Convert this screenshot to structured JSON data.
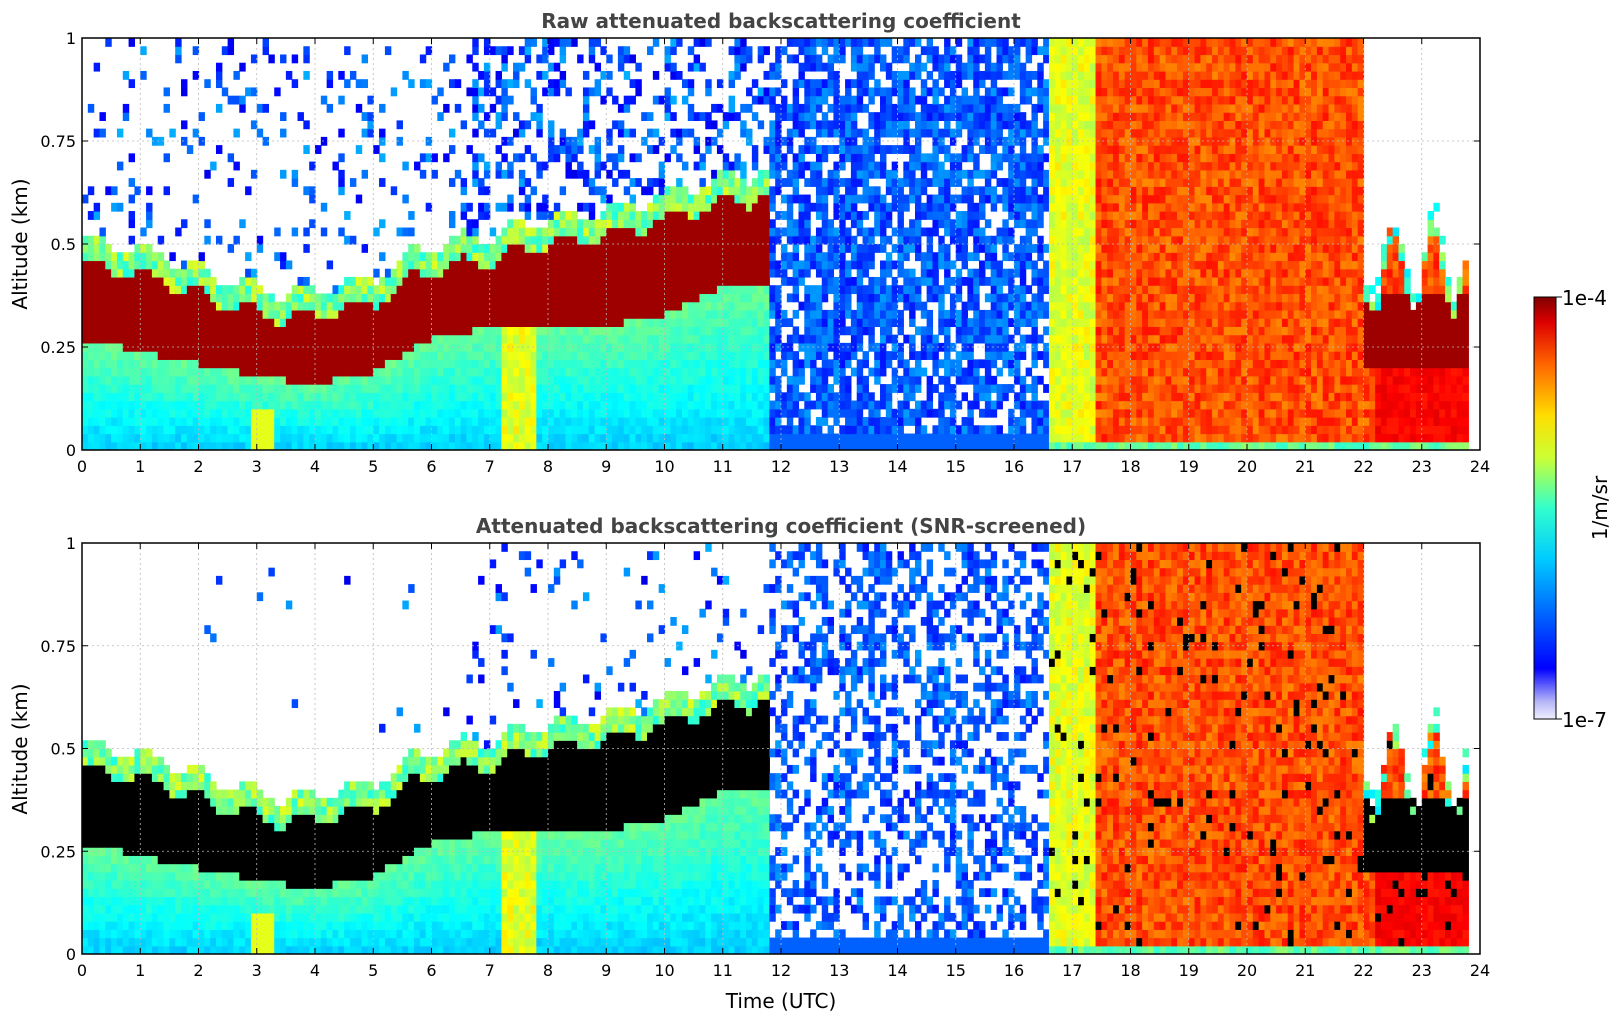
{
  "chart_data": [
    {
      "type": "heatmap",
      "title": "Raw attenuated backscattering coefficient",
      "ylabel": "Altitude (km)",
      "xlabel": "",
      "xlim": [
        0,
        24
      ],
      "ylim": [
        0,
        1
      ],
      "xticks": [
        "0",
        "1",
        "2",
        "3",
        "4",
        "5",
        "6",
        "7",
        "8",
        "9",
        "10",
        "11",
        "12",
        "13",
        "14",
        "15",
        "16",
        "17",
        "18",
        "19",
        "20",
        "21",
        "22",
        "23",
        "24"
      ],
      "yticks": [
        "0",
        "0.25",
        "0.5",
        "0.75",
        "1"
      ],
      "grid": true,
      "layer_top_km": [
        [
          0,
          0.45
        ],
        [
          1,
          0.43
        ],
        [
          2,
          0.38
        ],
        [
          3,
          0.33
        ],
        [
          4,
          0.32
        ],
        [
          5,
          0.36
        ],
        [
          6,
          0.44
        ],
        [
          7,
          0.46
        ],
        [
          8,
          0.5
        ],
        [
          9,
          0.52
        ],
        [
          10,
          0.56
        ],
        [
          11,
          0.6
        ],
        [
          12,
          0.62
        ]
      ],
      "layer_bottom_km": [
        [
          0,
          0.27
        ],
        [
          1,
          0.24
        ],
        [
          2,
          0.21
        ],
        [
          3,
          0.18
        ],
        [
          4,
          0.16
        ],
        [
          5,
          0.19
        ],
        [
          6,
          0.27
        ],
        [
          7,
          0.3
        ],
        [
          8,
          0.3
        ],
        [
          9,
          0.3
        ],
        [
          10,
          0.33
        ],
        [
          11,
          0.4
        ]
      ],
      "screened": false
    },
    {
      "type": "heatmap",
      "title": "Attenuated backscattering coefficient (SNR-screened)",
      "ylabel": "Altitude (km)",
      "xlabel": "Time (UTC)",
      "xlim": [
        0,
        24
      ],
      "ylim": [
        0,
        1
      ],
      "xticks": [
        "0",
        "1",
        "2",
        "3",
        "4",
        "5",
        "6",
        "7",
        "8",
        "9",
        "10",
        "11",
        "12",
        "13",
        "14",
        "15",
        "16",
        "17",
        "18",
        "19",
        "20",
        "21",
        "22",
        "23",
        "24"
      ],
      "yticks": [
        "0",
        "0.25",
        "0.5",
        "0.75",
        "1"
      ],
      "grid": true,
      "screened": true
    }
  ],
  "colorbar": {
    "label": "1/m/sr",
    "max_label": "1e-4",
    "min_label": "1e-7",
    "scale": "log",
    "range": [
      1e-07,
      0.0001
    ],
    "colormap": "jet"
  }
}
